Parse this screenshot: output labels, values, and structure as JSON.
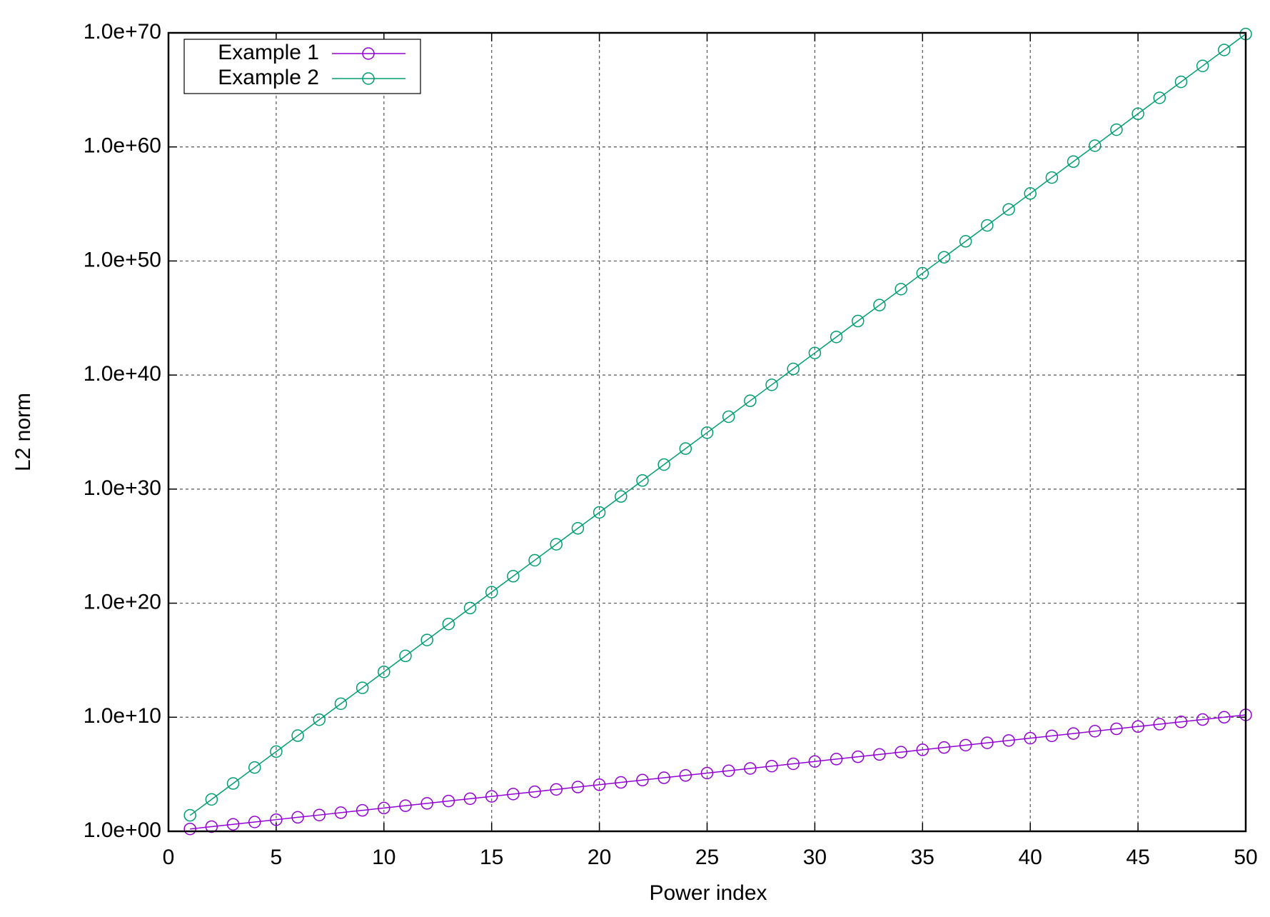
{
  "chart_data": {
    "type": "line",
    "x_label": "Power index",
    "y_label": "L2 norm",
    "yscale": "log",
    "grid": true,
    "legend": "top-left",
    "marker": "open-circle",
    "xlim": [
      0,
      50
    ],
    "xticks": [
      0,
      5,
      10,
      15,
      20,
      25,
      30,
      35,
      40,
      45,
      50
    ],
    "ylim": [
      1,
      1e+70
    ],
    "yticks": [
      {
        "value": 1,
        "label": "1.0e+00"
      },
      {
        "value": 10000000000.0,
        "label": "1.0e+10"
      },
      {
        "value": 1e+20,
        "label": "1.0e+20"
      },
      {
        "value": 1e+30,
        "label": "1.0e+30"
      },
      {
        "value": 1e+40,
        "label": "1.0e+40"
      },
      {
        "value": 1e+50,
        "label": "1.0e+50"
      },
      {
        "value": 1e+60,
        "label": "1.0e+60"
      },
      {
        "value": 1e+70,
        "label": "1.0e+70"
      }
    ],
    "x": [
      1,
      2,
      3,
      4,
      5,
      6,
      7,
      8,
      9,
      10,
      11,
      12,
      13,
      14,
      15,
      16,
      17,
      18,
      19,
      20,
      21,
      22,
      23,
      24,
      25,
      26,
      27,
      28,
      29,
      30,
      31,
      32,
      33,
      34,
      35,
      36,
      37,
      38,
      39,
      40,
      41,
      42,
      43,
      44,
      45,
      46,
      47,
      48,
      49,
      50
    ],
    "series": [
      {
        "name": "Example 1",
        "color": "#9400d3",
        "values": [
          1.6,
          2.56,
          4.1,
          6.55,
          10.5,
          16.8,
          26.8,
          43.0,
          68.7,
          110,
          176,
          281,
          450,
          721,
          1150.0,
          1840.0,
          2950.0,
          4720.0,
          7560.0,
          12100.0,
          19300.0,
          30900.0,
          49500.0,
          79200.0,
          127000.0,
          203000.0,
          325000.0,
          519000.0,
          831000.0,
          1330000.0,
          2130000.0,
          3400000.0,
          5440000.0,
          8710000.0,
          13900000.0,
          22300000.0,
          35700000.0,
          57100000.0,
          91300000.0,
          146000000.0,
          234000000.0,
          374000000.0,
          599000000.0,
          958000000.0,
          1530000000.0,
          2450000000.0,
          3920000000.0,
          6280000000.0,
          10000000000.0,
          16100000000.0
        ]
      },
      {
        "name": "Example 2",
        "color": "#009e73",
        "values": [
          25,
          625,
          15600.0,
          391000.0,
          9770000.0,
          244000000.0,
          6100000000.0,
          153000000000.0,
          3810000000000.0,
          95400000000000.0,
          2380000000000000.0,
          5.96e+16,
          1.49e+18,
          3.73e+19,
          9.31e+20,
          2.33e+22,
          5.82e+23,
          1.46e+25,
          3.64e+26,
          9.09e+27,
          2.27e+29,
          5.68e+30,
          1.42e+32,
          3.55e+33,
          8.88e+34,
          2.22e+36,
          5.55e+37,
          1.39e+39,
          3.47e+40,
          8.67e+41,
          2.17e+43,
          5.42e+44,
          1.36e+46,
          3.39e+47,
          8.47e+48,
          2.12e+50,
          5.29e+51,
          1.32e+53,
          3.31e+54,
          8.27e+55,
          2.07e+57,
          5.17e+58,
          1.29e+60,
          3.23e+61,
          8.08e+62,
          2.02e+64,
          5.05e+65,
          1.26e+67,
          3.16e+68,
          7.89e+69
        ]
      }
    ]
  }
}
